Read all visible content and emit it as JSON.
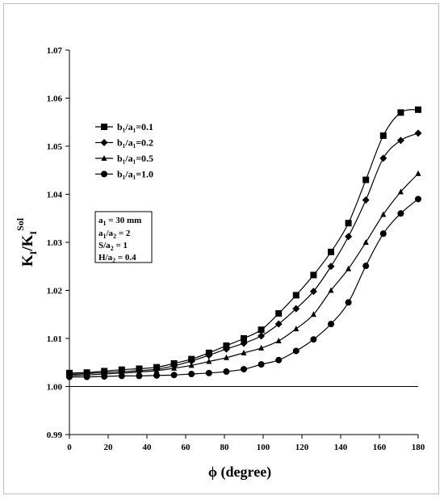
{
  "chart_data": {
    "type": "line",
    "xlabel": "ϕ (degree)",
    "ylabel": "K_I/K_I^Sol",
    "ylabel_parts": {
      "k1": "K",
      "s1": "I",
      "slash": "/",
      "k2": "K",
      "s2": "I",
      "sup": "Sol"
    },
    "xlim": [
      0,
      180
    ],
    "ylim": [
      0.99,
      1.07
    ],
    "xticks": [
      0,
      20,
      40,
      60,
      80,
      100,
      120,
      140,
      160,
      180
    ],
    "xtick_labels": [
      "0",
      "20",
      "40",
      "60",
      "80",
      "100",
      "120",
      "140",
      "160",
      "180"
    ],
    "yticks": [
      0.99,
      1.0,
      1.01,
      1.02,
      1.03,
      1.04,
      1.05,
      1.06,
      1.07
    ],
    "ytick_labels": [
      "0.99",
      "1.00",
      "1.01",
      "1.02",
      "1.03",
      "1.04",
      "1.05",
      "1.06",
      "1.07"
    ],
    "reference_line": 1.0,
    "grid": false,
    "legend_position": "upper-left",
    "x": [
      0,
      9,
      18,
      27,
      36,
      45,
      54,
      63,
      72,
      81,
      90,
      99,
      108,
      117,
      126,
      135,
      144,
      153,
      162,
      171,
      180
    ],
    "series": [
      {
        "name": "b₁/a₁=0.1",
        "marker": "square",
        "values": [
          1.0028,
          1.0029,
          1.0032,
          1.0035,
          1.0037,
          1.004,
          1.0048,
          1.0057,
          1.007,
          1.0085,
          1.01,
          1.0118,
          1.0152,
          1.019,
          1.0232,
          1.028,
          1.034,
          1.043,
          1.0522,
          1.057,
          1.0576
        ]
      },
      {
        "name": "b₁/a₁=0.2",
        "marker": "diamond",
        "values": [
          1.0025,
          1.0027,
          1.0029,
          1.0031,
          1.0033,
          1.0036,
          1.0043,
          1.0053,
          1.0065,
          1.0078,
          1.009,
          1.0105,
          1.013,
          1.0162,
          1.0198,
          1.025,
          1.0312,
          1.0388,
          1.0475,
          1.0512,
          1.0527
        ]
      },
      {
        "name": "b₁/a₁=0.5",
        "marker": "triangle",
        "values": [
          1.0023,
          1.0024,
          1.0026,
          1.0028,
          1.003,
          1.0033,
          1.0038,
          1.0044,
          1.0052,
          1.006,
          1.007,
          1.008,
          1.0095,
          1.012,
          1.015,
          1.02,
          1.0245,
          1.03,
          1.0358,
          1.0405,
          1.0443
        ]
      },
      {
        "name": "b₁/a₁=1.0",
        "marker": "circle",
        "values": [
          1.002,
          1.002,
          1.0021,
          1.0022,
          1.0022,
          1.0023,
          1.0024,
          1.0026,
          1.0028,
          1.0031,
          1.0036,
          1.0046,
          1.0055,
          1.0074,
          1.0098,
          1.013,
          1.0175,
          1.0251,
          1.0318,
          1.036,
          1.039
        ]
      }
    ],
    "annotation_box": {
      "lines": [
        {
          "a": "a",
          "sub": "1",
          "b": " = 30 mm"
        },
        {
          "a": "a",
          "sub": "1",
          "b": "/a",
          "sub2": "2",
          "c": " = 2"
        },
        {
          "a": "S/a",
          "sub": "2",
          "b": " = 1"
        },
        {
          "a": "H/a",
          "sub": "2",
          "b": " = 0.4"
        }
      ]
    }
  }
}
